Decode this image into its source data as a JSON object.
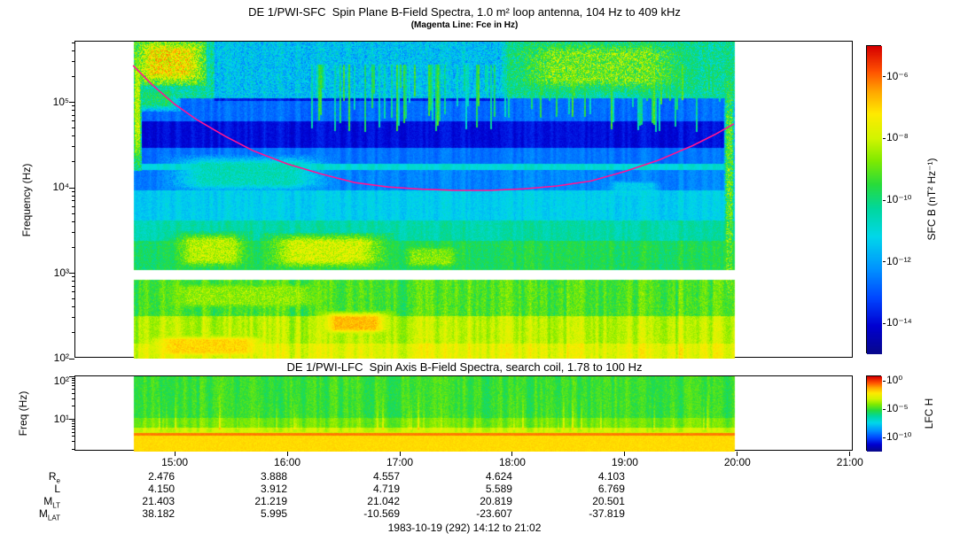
{
  "figure": {
    "footer": "1983-10-19 (292) 14:12 to 21:02"
  },
  "colors": {
    "fce_line": "#ff1493",
    "axis": "#000000",
    "plot_background": "#ffffff"
  },
  "time_axis": {
    "start_hour": 14.117,
    "end_hour": 21.033,
    "data_start_hour": 14.63,
    "data_end_hour": 19.97,
    "ticks": [
      {
        "label": "15:00",
        "hour": 15
      },
      {
        "label": "16:00",
        "hour": 16
      },
      {
        "label": "17:00",
        "hour": 17
      },
      {
        "label": "18:00",
        "hour": 18
      },
      {
        "label": "19:00",
        "hour": 19
      },
      {
        "label": "20:00",
        "hour": 20
      },
      {
        "label": "21:00",
        "hour": 21
      }
    ]
  },
  "ephemeris": {
    "tick_hours": [
      15,
      16,
      17,
      18,
      19
    ],
    "rows": [
      {
        "label": "R",
        "sub": "e",
        "values": [
          "2.476",
          "3.888",
          "4.557",
          "4.624",
          "4.103"
        ]
      },
      {
        "label": "L",
        "sub": "",
        "values": [
          "4.150",
          "3.912",
          "4.719",
          "5.589",
          "6.769"
        ]
      },
      {
        "label": "M",
        "sub": "LT",
        "values": [
          "21.403",
          "21.219",
          "21.042",
          "20.819",
          "20.501"
        ]
      },
      {
        "label": "M",
        "sub": "LAT",
        "values": [
          "38.182",
          "5.995",
          "-10.569",
          "-23.607",
          "-37.819"
        ]
      }
    ]
  },
  "chart_data": [
    {
      "type": "heatmap",
      "name": "sfc_spectrogram",
      "title": "DE 1/PWI-SFC  Spin Plane B-Field Spectra, 1.0 m² loop antenna, 104 Hz to 409 kHz",
      "subtitle": "(Magenta Line: Fce in Hz)",
      "ylabel": "Frequency (Hz)",
      "yscale": "log",
      "freq_range_hz": [
        100,
        510000
      ],
      "yticks": [
        {
          "label": "10⁵",
          "logf": 5
        },
        {
          "label": "10⁴",
          "logf": 4
        },
        {
          "label": "10³",
          "logf": 3
        },
        {
          "label": "10²",
          "logf": 2
        }
      ],
      "colorbar": {
        "label": "SFC B (nT² Hz⁻¹)",
        "log_range": [
          -15,
          -5
        ],
        "ticks": [
          {
            "label": "10⁻⁶",
            "value": -6
          },
          {
            "label": "10⁻⁸",
            "value": -8
          },
          {
            "label": "10⁻¹⁰",
            "value": -10
          },
          {
            "label": "10⁻¹²",
            "value": -12
          },
          {
            "label": "10⁻¹⁴",
            "value": -14
          }
        ]
      },
      "fce_line_hour_hz": [
        [
          14.63,
          270000
        ],
        [
          14.8,
          160000
        ],
        [
          15.0,
          95000
        ],
        [
          15.2,
          62000
        ],
        [
          15.45,
          40000
        ],
        [
          15.7,
          27000
        ],
        [
          16.0,
          19000
        ],
        [
          16.3,
          14500
        ],
        [
          16.6,
          11500
        ],
        [
          16.9,
          10200
        ],
        [
          17.2,
          9600
        ],
        [
          17.5,
          9300
        ],
        [
          17.8,
          9300
        ],
        [
          18.1,
          9700
        ],
        [
          18.4,
          10500
        ],
        [
          18.7,
          12000
        ],
        [
          19.0,
          15500
        ],
        [
          19.3,
          21000
        ],
        [
          19.6,
          31000
        ],
        [
          19.8,
          42000
        ],
        [
          19.97,
          56000
        ]
      ],
      "gap_logf": [
        2.93,
        3.04
      ],
      "bands": [
        {
          "f": [
            2.0,
            2.18
          ],
          "level": -7.7,
          "noise": 0.5
        },
        {
          "f": [
            2.18,
            2.5
          ],
          "level": -8.2,
          "noise": 0.5
        },
        {
          "f": [
            2.5,
            2.93
          ],
          "level": -9.2,
          "noise": 0.7
        },
        {
          "f": [
            3.04,
            3.38
          ],
          "level": -9.7,
          "noise": 0.6
        },
        {
          "f": [
            3.38,
            3.62
          ],
          "level": -10.4,
          "noise": 0.5
        },
        {
          "f": [
            3.62,
            3.97
          ],
          "level": -11.3,
          "noise": 0.45
        },
        {
          "f": [
            3.97,
            4.21
          ],
          "level": -12.4,
          "noise": 0.35
        },
        {
          "f": [
            4.21,
            4.29
          ],
          "level": -10.9,
          "noise": 0.25
        },
        {
          "f": [
            4.29,
            4.47
          ],
          "level": -12.6,
          "noise": 0.3
        },
        {
          "f": [
            4.47,
            4.78
          ],
          "level": -13.9,
          "noise": 0.3
        },
        {
          "f": [
            4.78,
            5.05
          ],
          "level": -12.7,
          "noise": 0.4
        },
        {
          "f": [
            5.05,
            5.75
          ],
          "level": -10.4,
          "noise": 1.4
        }
      ],
      "patches": [
        {
          "t": [
            14.63,
            15.28
          ],
          "f": [
            5.2,
            5.75
          ],
          "level": -7.4,
          "noise": 2.0
        },
        {
          "t": [
            14.63,
            15.05
          ],
          "f": [
            4.9,
            5.2
          ],
          "level": -9.9,
          "noise": 1.2
        },
        {
          "t": [
            14.63,
            14.7
          ],
          "f": [
            4.2,
            5.75
          ],
          "level": -8.2,
          "noise": 1.5
        },
        {
          "t": [
            17.9,
            19.65
          ],
          "f": [
            5.1,
            5.75
          ],
          "level": -8.9,
          "noise": 2.0
        },
        {
          "t": [
            14.85,
            16.45
          ],
          "f": [
            3.93,
            4.4
          ],
          "level": -10.6,
          "noise": 0.8
        },
        {
          "t": [
            18.75,
            19.4
          ],
          "f": [
            3.85,
            4.12
          ],
          "level": -11.4,
          "noise": 0.6
        },
        {
          "t": [
            14.95,
            15.7
          ],
          "f": [
            3.04,
            3.5
          ],
          "level": -8.2,
          "noise": 1.1
        },
        {
          "t": [
            15.75,
            16.95
          ],
          "f": [
            3.04,
            3.48
          ],
          "level": -7.9,
          "noise": 1.1
        },
        {
          "t": [
            16.95,
            17.6
          ],
          "f": [
            3.04,
            3.35
          ],
          "level": -8.7,
          "noise": 1.0
        },
        {
          "t": [
            14.63,
            16.6
          ],
          "f": [
            2.55,
            2.93
          ],
          "level": -8.6,
          "noise": 0.9
        },
        {
          "t": [
            16.25,
            16.95
          ],
          "f": [
            2.28,
            2.56
          ],
          "level": -6.7,
          "noise": 0.5
        },
        {
          "t": [
            14.63,
            15.95
          ],
          "f": [
            2.0,
            2.3
          ],
          "level": -7.0,
          "noise": 0.5
        },
        {
          "t": [
            19.88,
            19.97
          ],
          "f": [
            2.0,
            5.75
          ],
          "level": -9.2,
          "noise": 2.0
        }
      ],
      "dims": [
        {
          "t": [
            15.35,
            17.95
          ],
          "f": [
            5.02,
            5.75
          ],
          "delta": -1.1
        }
      ],
      "streaks": {
        "t": [
          16.2,
          19.85
        ],
        "f": [
          4.65,
          5.45
        ],
        "prob": 0.3,
        "level": -10.9
      }
    },
    {
      "type": "heatmap",
      "name": "lfc_spectrogram",
      "title": "DE 1/PWI-LFC  Spin Axis B-Field Spectra, search coil, 1.78 to 100 Hz",
      "ylabel": "Freq (Hz)",
      "yscale": "log",
      "freq_range_hz": [
        1.78,
        100
      ],
      "yticks": [
        {
          "label": "10²",
          "logf": 2
        },
        {
          "label": "10¹",
          "logf": 1
        }
      ],
      "colorbar": {
        "label": "LFC H",
        "log_range": [
          -12.5,
          0.8
        ],
        "ticks": [
          {
            "label": "10⁰",
            "value": 0
          },
          {
            "label": "10⁻⁵",
            "value": -5
          },
          {
            "label": "10⁻¹⁰",
            "value": -10
          }
        ]
      },
      "bands": [
        {
          "f": [
            1.05,
            2.01
          ],
          "level": -5.0,
          "noise": 0.8
        },
        {
          "f": [
            0.82,
            1.05
          ],
          "level": -4.3,
          "noise": 0.6
        },
        {
          "f": [
            0.7,
            0.82
          ],
          "level": -3.2,
          "noise": 0.4
        },
        {
          "f": [
            0.63,
            0.7
          ],
          "level": -0.7,
          "noise": 0.2
        },
        {
          "f": [
            0.25,
            0.63
          ],
          "level": -1.9,
          "noise": 0.3
        }
      ]
    }
  ]
}
